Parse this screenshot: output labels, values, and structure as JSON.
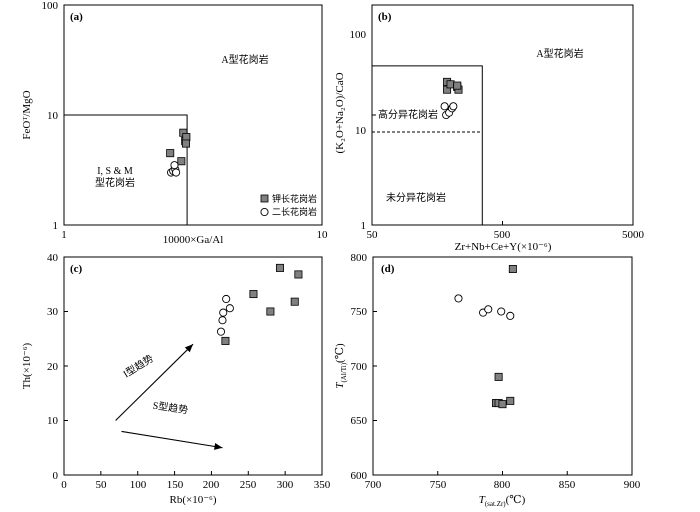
{
  "chart_data": [
    {
      "panel": "a",
      "label": "(a)",
      "type": "scatter",
      "xscale": "log",
      "yscale": "log",
      "xlim": [
        1,
        10
      ],
      "ylim": [
        1,
        100
      ],
      "xlabel": "10000×Ga/Al",
      "ylabel": "FeOᵀ/MgO",
      "xticks": [
        1,
        10
      ],
      "yticks": [
        1,
        10,
        100
      ],
      "boundary": [
        [
          1,
          10
        ],
        [
          3,
          10
        ],
        [
          3,
          1
        ]
      ],
      "regions": {
        "a_type": "A型花岗岩",
        "ism_line1": "I, S & M",
        "ism_line2": "型花岗岩"
      },
      "legend": {
        "position": "lower-right",
        "entries": [
          "钾长花岗岩",
          "二长花岗岩"
        ]
      },
      "series": [
        {
          "name": "钾长花岗岩",
          "marker": "square",
          "x": [
            2.58,
            2.85,
            2.9,
            2.95,
            2.98,
            2.97
          ],
          "y": [
            4.5,
            3.8,
            6.9,
            5.8,
            6.3,
            5.5
          ]
        },
        {
          "name": "二长花岗岩",
          "marker": "circle",
          "x": [
            2.6,
            2.65,
            2.7,
            2.68,
            2.72
          ],
          "y": [
            3.0,
            3.1,
            3.2,
            3.5,
            3.0
          ]
        }
      ]
    },
    {
      "panel": "b",
      "label": "(b)",
      "type": "scatter",
      "xscale": "log",
      "yscale": "log",
      "xlim": [
        50,
        5000
      ],
      "ylim": [
        1,
        100
      ],
      "xlabel": "Zr+Nb+Ce+Y(×10⁻⁶)",
      "ylabel": "(K₂O+Na₂O)/CaO",
      "xticks": [
        50,
        500,
        5000
      ],
      "yticks": [
        1,
        10,
        100
      ],
      "boundary": [
        [
          50,
          28
        ],
        [
          350,
          28
        ],
        [
          350,
          1
        ]
      ],
      "dashed": [
        [
          50,
          7
        ],
        [
          350,
          7
        ]
      ],
      "regions": {
        "a_type": "A型花岗岩",
        "fractionated": "高分异花岗岩",
        "unfractionated": "未分异花岗岩"
      },
      "series": [
        {
          "name": "钾长花岗岩",
          "marker": "square",
          "x": [
            188,
            188,
            200,
            225,
            230,
            225
          ],
          "y": [
            20,
            17,
            19,
            18,
            17,
            18.5
          ]
        },
        {
          "name": "二长花岗岩",
          "marker": "circle",
          "x": [
            180,
            185,
            195,
            205,
            210
          ],
          "y": [
            12,
            10,
            10.5,
            11.5,
            12
          ]
        }
      ]
    },
    {
      "panel": "c",
      "label": "(c)",
      "type": "scatter",
      "xlim": [
        0,
        350
      ],
      "ylim": [
        0,
        40
      ],
      "xlabel": "Rb(×10⁻⁶)",
      "ylabel": "Th(×10⁻⁶)",
      "xticks": [
        0,
        50,
        100,
        150,
        200,
        250,
        300,
        350
      ],
      "yticks": [
        0,
        10,
        20,
        30,
        40
      ],
      "trends": [
        {
          "label": "I型趋势",
          "from": [
            70,
            10
          ],
          "to": [
            175,
            24
          ]
        },
        {
          "label": "S型趋势",
          "from": [
            78,
            8
          ],
          "to": [
            215,
            5
          ]
        }
      ],
      "series": [
        {
          "name": "钾长花岗岩",
          "marker": "square",
          "x": [
            219,
            257,
            280,
            293,
            313,
            318
          ],
          "y": [
            24.6,
            33.2,
            30.0,
            38.0,
            31.8,
            36.8
          ]
        },
        {
          "name": "二长花岗岩",
          "marker": "circle",
          "x": [
            213,
            215,
            216,
            220,
            225
          ],
          "y": [
            26.3,
            28.4,
            29.8,
            32.3,
            30.6
          ]
        }
      ]
    },
    {
      "panel": "d",
      "label": "(d)",
      "type": "scatter",
      "xlim": [
        700,
        900
      ],
      "ylim": [
        600,
        800
      ],
      "xlabel_main": "T",
      "xlabel_sub": "(sat.Zr)",
      "xlabel_unit": "(℃)",
      "ylabel_main": "T",
      "ylabel_sub": "(Al/Ti)",
      "ylabel_unit": "(℃)",
      "xticks": [
        700,
        750,
        800,
        850,
        900
      ],
      "yticks": [
        600,
        650,
        700,
        750,
        800
      ],
      "series": [
        {
          "name": "钾长花岗岩",
          "marker": "square",
          "x": [
            808,
            797,
            795,
            797,
            800,
            806
          ],
          "y": [
            789,
            690,
            666,
            666,
            665,
            668
          ]
        },
        {
          "name": "二长花岗岩",
          "marker": "circle",
          "x": [
            766,
            785,
            789,
            799,
            806
          ],
          "y": [
            762,
            749,
            752,
            750,
            746
          ]
        }
      ]
    }
  ]
}
